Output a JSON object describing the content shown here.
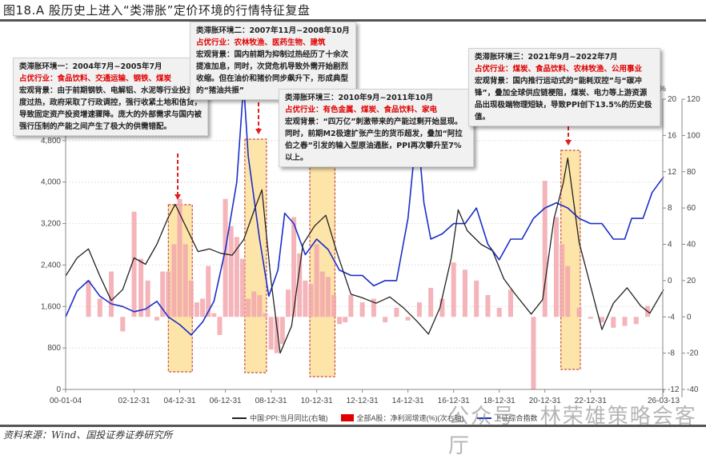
{
  "title": "图18.A 股历史上进入“类滞胀”定价环境的行情特征复盘",
  "source": "资料来源：Wind、国投证券证券研究所",
  "watermark": "公众号 · 林荣雄策略会客厅",
  "callouts": [
    {
      "heading": "类滞胀环境一：2004年7月~2005年7月",
      "industries": "占优行业：食品饮料、交通运输、钢铁、煤炭",
      "body": "宏观背景：由于前期钢铁、电解铝、水泥等行业投资极度过热，政府采取了行政调控，强行收紧土地和信贷，导致固定资产投资增速骤降。庞大的外部需求与国内被强行压制的产能之间产生了极大的供需错配。"
    },
    {
      "heading": "类滞胀环境二：2007年11月~2008年10月",
      "industries": "占优行业：农林牧渔、医药生物、建筑",
      "body": "宏观背景：国内前期为抑制过热经历了十余次提准加息，同时，次贷危机导致外需开始剧烈收缩。但在油价和猪价同步飙升下，形成典型的“猪油共振”"
    },
    {
      "heading": "类滞胀环境三：2010年9月~2011年10月",
      "industries": "占优行业：有色金属、煤炭、食品饮料、家电",
      "body": "宏观背景：“四万亿”刺激带来的产能过剩开始显现。同时，前期M2极速扩张产生的货币超发，叠加“阿拉伯之春”引发的输入型原油通胀，PPI再次攀升至7%以上。"
    },
    {
      "heading": "类滞胀环境三：2021年9月~2022年7月",
      "industries": "占优行业：煤炭、食品饮料、农林牧渔、公用事业",
      "body": "宏观背景：国内推行运动式的“能耗双控”与“碳冲锋”，叠加全球供应链梗阻，煤炭、电力等上游资源品出现极端物理短缺，导致PPI创下13.5%的历史极值。"
    }
  ],
  "legend": {
    "ppi": "中国:PPI:当月同比(右轴)",
    "profit": "全部A股：净利润增速(%)(次右轴)",
    "index": "上证综合指数"
  },
  "colors": {
    "ppi": "#222222",
    "profit": "#f2a7ad",
    "index": "#1a2fc9",
    "highlight_fill": "#fde2a0",
    "highlight_border": "#c0392b",
    "arrow": "#e02020"
  },
  "chart_data": {
    "type": "line",
    "title": "图18.A 股历史上进入“类滞胀”定价环境的行情特征复盘",
    "x_ticks": [
      "00-01-04",
      "02-12-31",
      "04-12-31",
      "06-12-31",
      "08-12-31",
      "10-12-31",
      "12-12-31",
      "14-12-31",
      "16-12-31",
      "18-12-31",
      "20-12-31",
      "22-12-31",
      "26-03-13"
    ],
    "left_axis": {
      "label": "上证综合指数",
      "ticks": [
        0,
        800,
        1600,
        2400,
        3200,
        4000,
        4800,
        5600
      ],
      "range": [
        0,
        5600
      ]
    },
    "right_axis": {
      "label": "%",
      "ticks": [
        20,
        16,
        12,
        8,
        4,
        0,
        -4,
        -8,
        -12
      ],
      "range": [
        -12,
        20
      ]
    },
    "second_right_axis": {
      "ticks": [
        120,
        100,
        80,
        60,
        40,
        20,
        0,
        -20,
        -40
      ],
      "range": [
        -40,
        120
      ]
    },
    "highlight_periods": [
      {
        "label": "类滞胀环境一",
        "start": "2004-07",
        "end": "2005-07"
      },
      {
        "label": "类滞胀环境二",
        "start": "2007-11",
        "end": "2008-10"
      },
      {
        "label": "类滞胀环境三",
        "start": "2010-09",
        "end": "2011-10"
      },
      {
        "label": "类滞胀环境三",
        "start": "2021-09",
        "end": "2022-07"
      }
    ],
    "series": [
      {
        "name": "中国:PPI:当月同比(右轴)",
        "axis": "right",
        "x": [
          2000.0,
          2000.5,
          2001.0,
          2001.5,
          2002.0,
          2002.5,
          2003.0,
          2003.5,
          2004.0,
          2004.5,
          2004.8,
          2005.3,
          2005.8,
          2006.3,
          2006.8,
          2007.3,
          2007.8,
          2008.3,
          2008.6,
          2009.0,
          2009.4,
          2009.9,
          2010.4,
          2010.9,
          2011.4,
          2011.9,
          2012.5,
          2013.0,
          2013.6,
          2014.2,
          2014.8,
          2015.4,
          2015.9,
          2016.4,
          2016.9,
          2017.2,
          2017.6,
          2018.2,
          2018.7,
          2019.2,
          2019.7,
          2020.4,
          2020.9,
          2021.4,
          2021.8,
          2022.0,
          2022.5,
          2023.0,
          2023.5,
          2024.0,
          2024.6,
          2025.2,
          2025.6,
          2026.2
        ],
        "values": [
          0.5,
          2.5,
          3.5,
          0.5,
          -2.2,
          -1.0,
          2.5,
          1.8,
          4.0,
          7.0,
          8.4,
          5.8,
          3.2,
          3.5,
          3.0,
          2.8,
          4.5,
          8.0,
          10.0,
          0.0,
          -8.0,
          -5.0,
          4.0,
          6.0,
          7.2,
          3.0,
          -1.5,
          -1.9,
          -2.5,
          -1.8,
          -3.0,
          -4.5,
          -5.9,
          -3.0,
          2.5,
          7.8,
          5.5,
          4.0,
          3.3,
          0.2,
          -1.5,
          -3.7,
          -2.1,
          6.8,
          10.7,
          13.5,
          4.2,
          -0.6,
          -5.4,
          -2.5,
          -0.8,
          -2.8,
          -3.6,
          -1.0
        ]
      },
      {
        "name": "全部A股：净利润增速(%)(次右轴)",
        "axis": "second_right",
        "type": "bar",
        "x": [
          2001.0,
          2001.5,
          2002.0,
          2002.5,
          2003.0,
          2003.3,
          2003.6,
          2004.0,
          2004.25,
          2004.5,
          2004.75,
          2005.0,
          2005.25,
          2005.5,
          2005.75,
          2006.0,
          2006.25,
          2006.5,
          2006.75,
          2007.0,
          2007.25,
          2007.5,
          2007.75,
          2008.0,
          2008.25,
          2008.5,
          2008.75,
          2009.0,
          2009.25,
          2009.5,
          2009.75,
          2010.0,
          2010.25,
          2010.5,
          2010.75,
          2011.0,
          2011.25,
          2011.5,
          2011.75,
          2012.0,
          2012.25,
          2012.5,
          2013.0,
          2013.5,
          2014.0,
          2014.5,
          2015.0,
          2015.5,
          2016.0,
          2016.5,
          2017.0,
          2017.5,
          2018.0,
          2018.5,
          2019.0,
          2019.5,
          2020.0,
          2020.5,
          2021.0,
          2021.5,
          2021.75,
          2022.0,
          2022.5,
          2023.0,
          2023.5,
          2024.0,
          2024.5,
          2025.0,
          2025.5
        ],
        "values": [
          20,
          10,
          25,
          -8,
          58,
          32,
          20,
          -2,
          25,
          25,
          40,
          65,
          40,
          20,
          8,
          10,
          28,
          2,
          -10,
          65,
          50,
          44,
          32,
          10,
          14,
          12,
          2,
          -18,
          -20,
          -15,
          15,
          55,
          35,
          20,
          18,
          40,
          25,
          22,
          12,
          -4,
          -3,
          12,
          8,
          10,
          -3,
          5,
          -2,
          8,
          16,
          10,
          30,
          26,
          20,
          12,
          5,
          15,
          0,
          -40,
          75,
          55,
          40,
          28,
          5,
          -1,
          -3,
          -6,
          -5,
          -4,
          6
        ]
      },
      {
        "name": "上证综合指数",
        "axis": "left",
        "x": [
          2000.0,
          2000.5,
          2001.0,
          2001.5,
          2002.0,
          2002.5,
          2003.0,
          2003.5,
          2004.0,
          2004.5,
          2005.0,
          2005.5,
          2006.0,
          2006.5,
          2007.0,
          2007.5,
          2007.8,
          2008.0,
          2008.5,
          2008.9,
          2009.3,
          2009.6,
          2010.0,
          2010.5,
          2011.0,
          2011.5,
          2012.0,
          2012.5,
          2013.0,
          2013.5,
          2014.0,
          2014.5,
          2015.0,
          2015.4,
          2015.7,
          2016.0,
          2016.5,
          2017.0,
          2017.5,
          2018.0,
          2018.5,
          2019.0,
          2019.5,
          2020.0,
          2020.5,
          2021.0,
          2021.5,
          2022.0,
          2022.5,
          2023.0,
          2023.5,
          2024.0,
          2024.5,
          2024.8,
          2025.3,
          2025.7,
          2026.2
        ],
        "values": [
          1400,
          1900,
          2100,
          1800,
          1650,
          1600,
          1500,
          1550,
          1700,
          1400,
          1250,
          1050,
          1300,
          1700,
          2700,
          4000,
          5900,
          4500,
          2900,
          1800,
          2300,
          3400,
          3200,
          2600,
          2900,
          2700,
          2300,
          2200,
          2200,
          2000,
          2100,
          2100,
          3300,
          5100,
          3600,
          2900,
          3000,
          3200,
          3200,
          3500,
          2800,
          2500,
          2900,
          2900,
          3300,
          3500,
          3600,
          3500,
          3300,
          3200,
          3200,
          2900,
          2900,
          3300,
          3300,
          3800,
          4100
        ]
      }
    ],
    "legend_position": "bottom",
    "grid": true
  }
}
